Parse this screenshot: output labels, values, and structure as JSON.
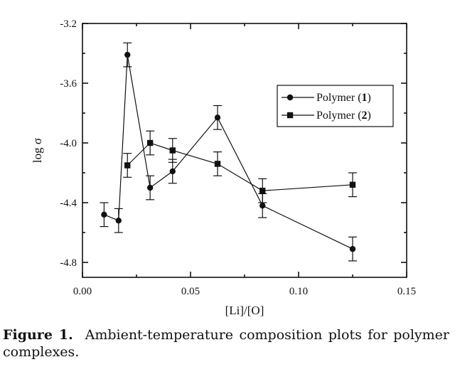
{
  "chart_data": {
    "type": "scatter",
    "xlabel": "[Li]/[O]",
    "ylabel": "log σ",
    "xlim": [
      0.0,
      0.15
    ],
    "ylim": [
      -4.9,
      -3.2
    ],
    "x_ticks": [
      "0.00",
      "0.05",
      "0.10",
      "0.15"
    ],
    "y_ticks": [
      "-3.2",
      "-3.6",
      "-4.0",
      "-4.4",
      "-4.8"
    ],
    "grid": false,
    "legend_position": "upper-right",
    "series": [
      {
        "name": "Polymer (1)",
        "marker": "circle",
        "x": [
          0.01,
          0.0167,
          0.0208,
          0.0313,
          0.0417,
          0.0625,
          0.0833,
          0.125
        ],
        "y": [
          -4.48,
          -4.52,
          -3.41,
          -4.3,
          -4.19,
          -3.83,
          -4.42,
          -4.71
        ],
        "error": 0.08
      },
      {
        "name": "Polymer (2)",
        "marker": "square",
        "x": [
          0.0208,
          0.0313,
          0.0417,
          0.0625,
          0.0833,
          0.125
        ],
        "y": [
          -4.15,
          -4.0,
          -4.05,
          -4.14,
          -4.32,
          -4.28
        ],
        "error": 0.08
      }
    ]
  },
  "caption": {
    "label": "Figure 1.",
    "text": "Ambient-temperature composition plots for polymer complexes."
  }
}
